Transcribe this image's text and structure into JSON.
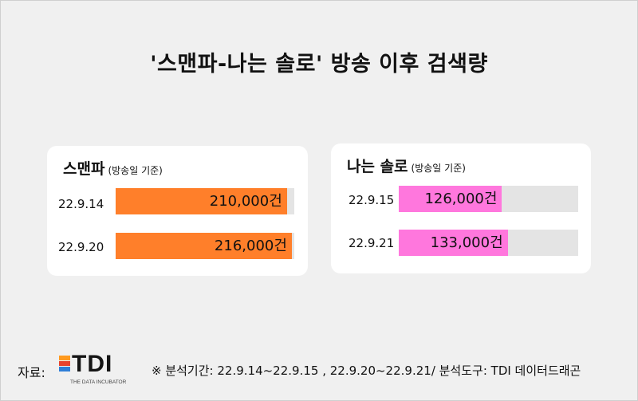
{
  "title": "'스맨파-나는 솔로' 방송 이후 검색량",
  "chart_data": [
    {
      "type": "bar",
      "title": "스맨파",
      "subtitle": "(방송일 기준)",
      "categories": [
        "22.9.14",
        "22.9.20"
      ],
      "values": [
        210000,
        216000
      ],
      "value_labels": [
        "210,000건",
        "216,000건"
      ],
      "bar_color": "#ff7f2a",
      "track_max": 219000
    },
    {
      "type": "bar",
      "title": "나는 솔로",
      "subtitle": "(방송일 기준)",
      "categories": [
        "22.9.15",
        "22.9.21"
      ],
      "values": [
        126000,
        133000
      ],
      "value_labels": [
        "126,000건",
        "133,000건"
      ],
      "bar_color": "#ff77dd",
      "track_max": 219000
    }
  ],
  "footer": {
    "source_label": "자료:",
    "logo_text": "TDI",
    "logo_sub": "THE DATA INCUBATOR",
    "logo_colors": [
      "#ff9a1f",
      "#e8442e",
      "#2f7fd8"
    ],
    "note": "※ 분석기간: 22.9.14~22.9.15 , 22.9.20~22.9.21/ 분석도구: TDI 데이터드래곤"
  }
}
